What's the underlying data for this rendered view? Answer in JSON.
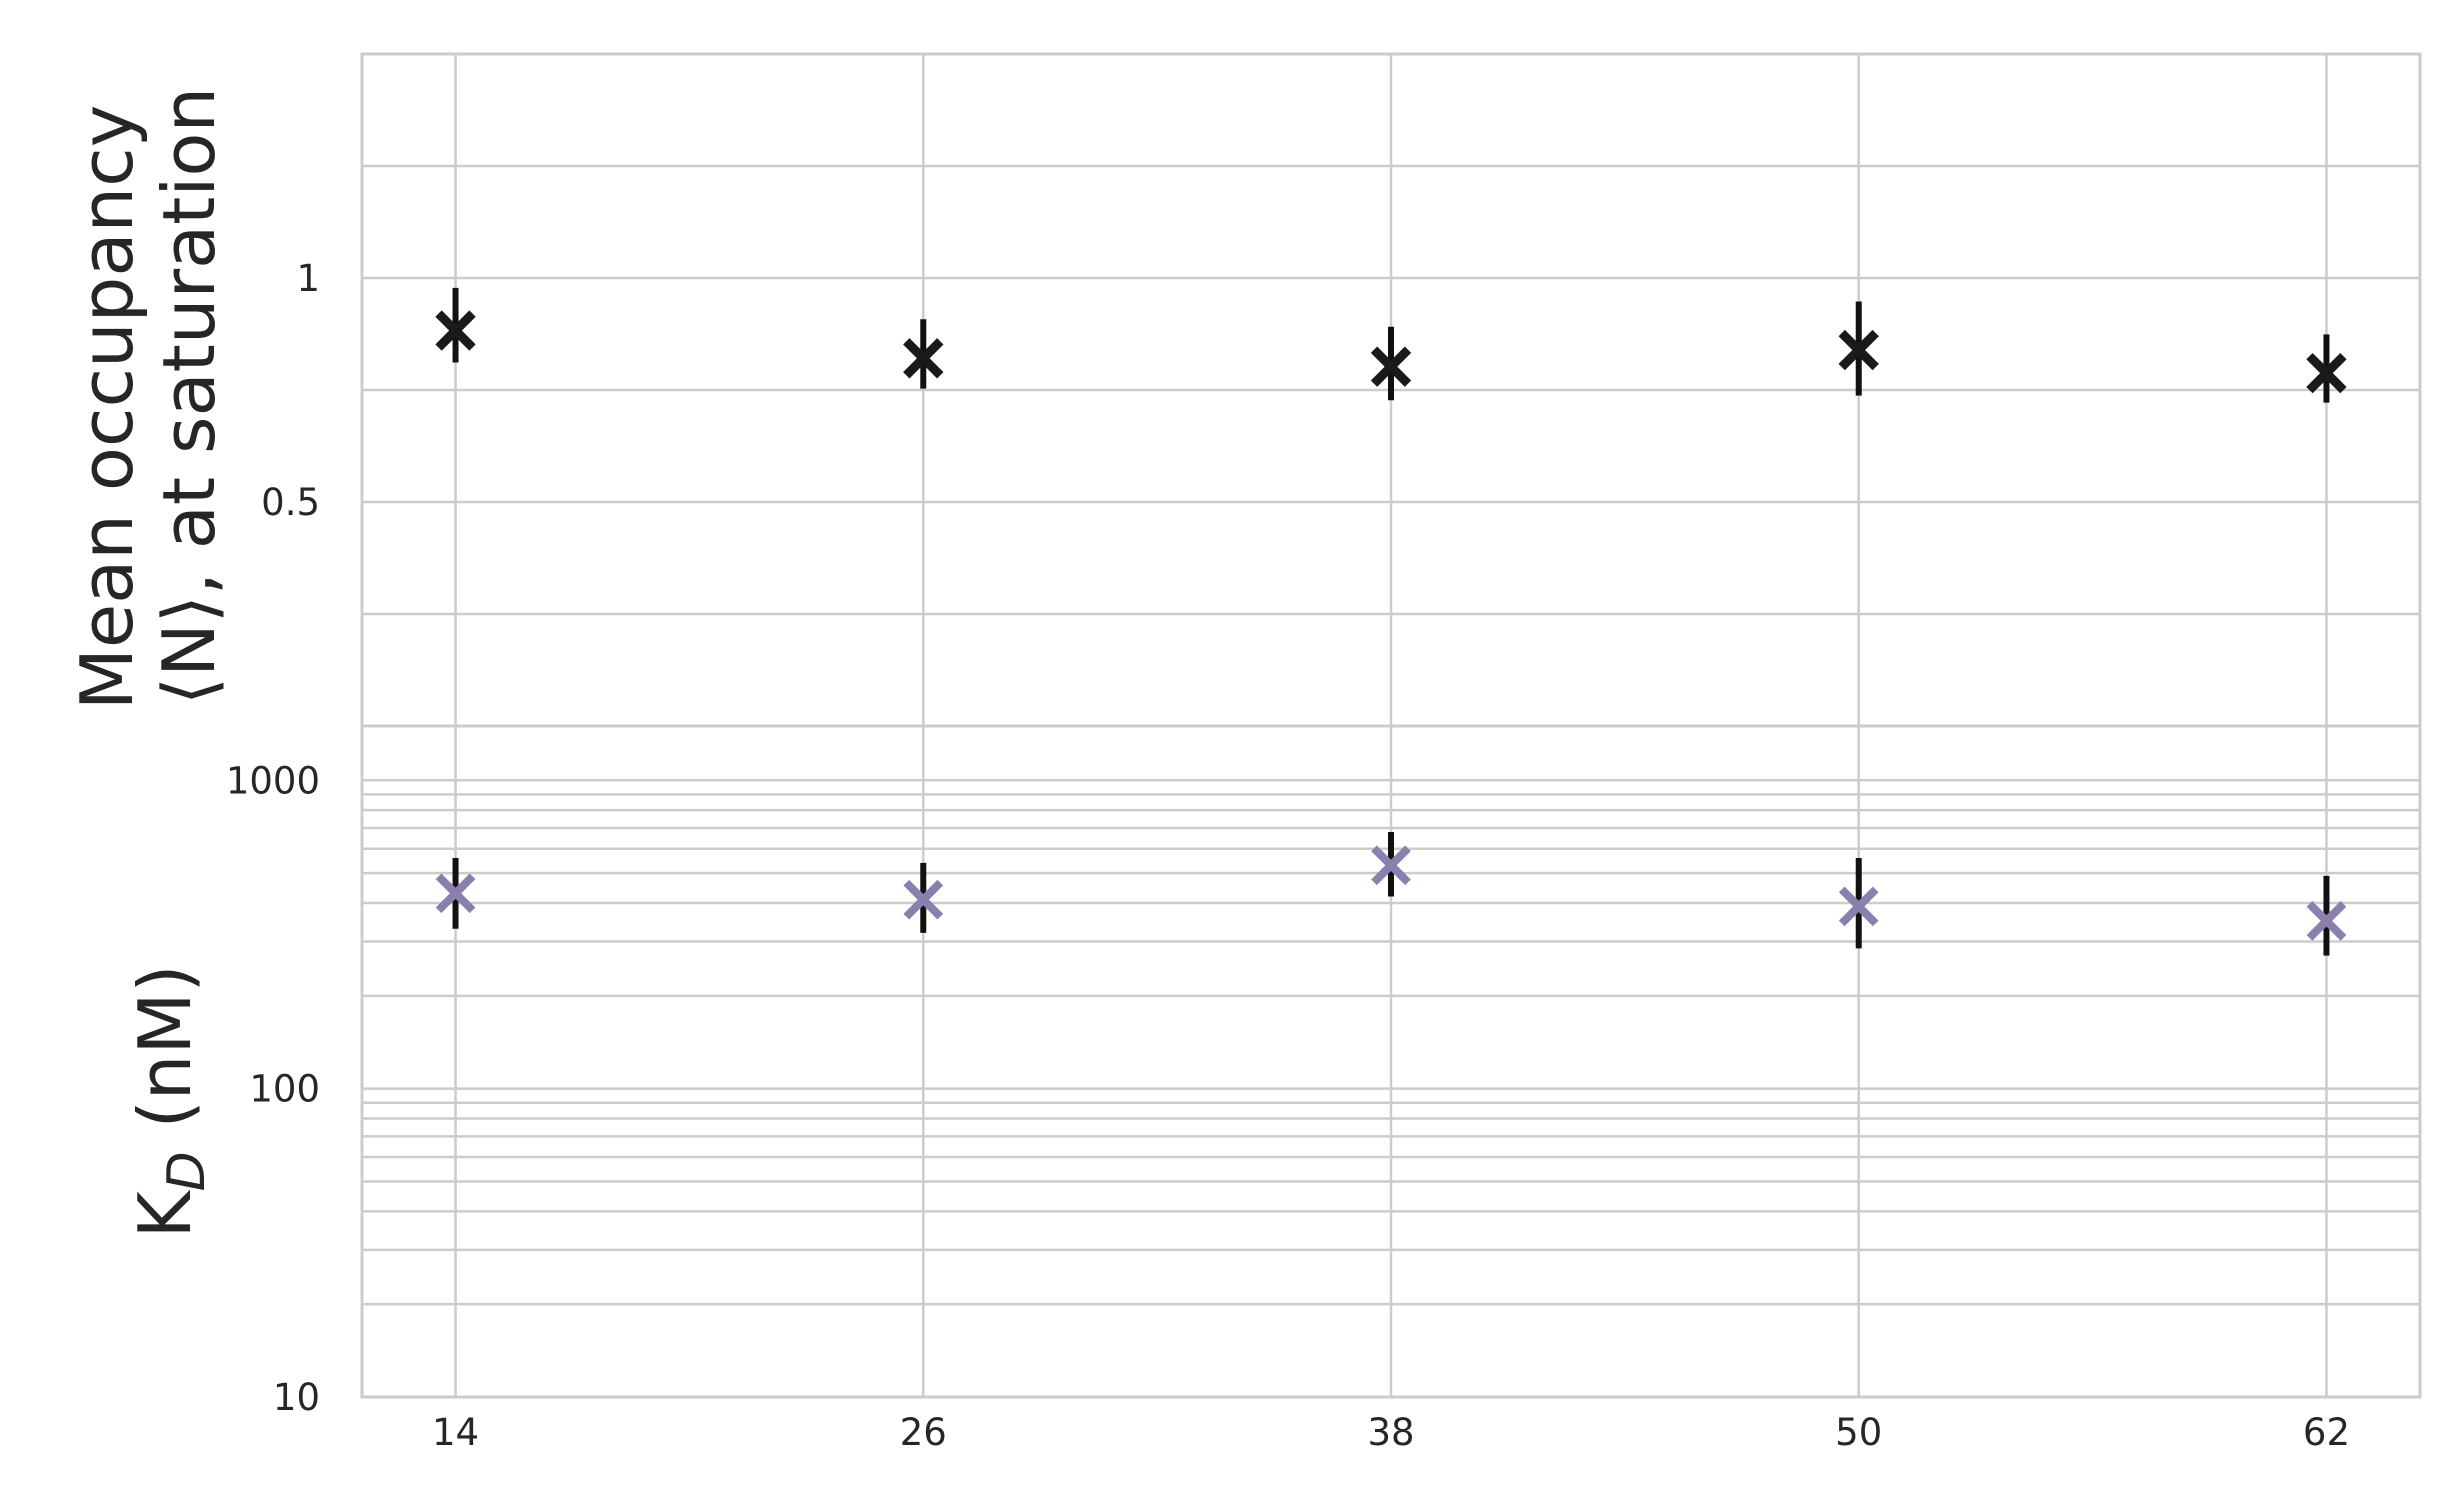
{
  "chart_data": [
    {
      "type": "scatter",
      "ylabel_lines": [
        "Mean occupancy",
        "⟨N⟩, at saturation"
      ],
      "yscale": "log",
      "ylim": [
        0.25,
        2.0
      ],
      "major_yticks": [
        {
          "value": 1,
          "label": "1"
        },
        {
          "value": 0.5,
          "label": "0.5"
        }
      ],
      "gridlines": [
        2.0,
        1.414,
        1.0,
        0.7071,
        0.5,
        0.3536,
        0.25
      ],
      "marker": "x",
      "marker_color": "#1a1a1a",
      "error_color": "#111111",
      "x": [
        14,
        26,
        38,
        50,
        62
      ],
      "y": [
        0.85,
        0.78,
        0.76,
        0.8,
        0.745
      ],
      "yerr_low": [
        0.77,
        0.71,
        0.685,
        0.695,
        0.68
      ],
      "yerr_high": [
        0.97,
        0.88,
        0.86,
        0.93,
        0.84
      ]
    },
    {
      "type": "scatter",
      "ylabel_main": "K",
      "ylabel_sub": "D",
      "ylabel_unit": " (nM)",
      "yscale": "log",
      "ylim": [
        10,
        1500
      ],
      "major_yticks": [
        {
          "value": 1000,
          "label": "1000"
        },
        {
          "value": 100,
          "label": "100"
        },
        {
          "value": 10,
          "label": "10"
        }
      ],
      "minor_gridlines": [
        20,
        30,
        40,
        50,
        60,
        70,
        80,
        90,
        200,
        300,
        400,
        500,
        600,
        700,
        800,
        900
      ],
      "marker": "x",
      "marker_color": "#8b80ad",
      "error_color": "#111111",
      "x": [
        14,
        26,
        38,
        50,
        62
      ],
      "y": [
        430,
        410,
        530,
        390,
        350
      ],
      "yerr_low": [
        330,
        320,
        420,
        285,
        270
      ],
      "yerr_high": [
        560,
        540,
        680,
        560,
        490
      ],
      "xticks": [
        14,
        26,
        38,
        50,
        62
      ],
      "xlim": [
        11.6,
        64.4
      ]
    }
  ]
}
